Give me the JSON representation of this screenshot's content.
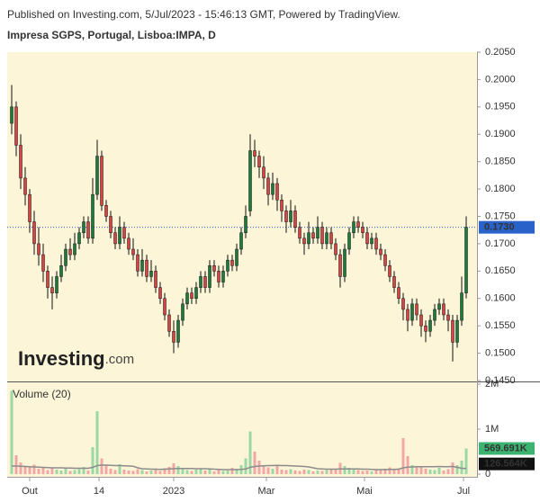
{
  "header": {
    "published": "Published on Investing.com, 5/Jul/2023 - 15:46:13 GMT, Powered by TradingView.",
    "symbol": "Impresa SGPS, Portugal, Lisboa:IMPA, D"
  },
  "chart_data": {
    "type": "candlestick",
    "watermark": "Investing",
    "watermark_suffix": ".com",
    "volume_title": "Volume (20)",
    "up_color": "#1e7a3c",
    "down_color": "#d64545",
    "volume_up_color": "#9ad8a6",
    "volume_down_color": "#f2a7a7",
    "volume_ma_color": "#8c8c8c",
    "last_price_color": "#2962c9",
    "xlim": [
      -1,
      103.4
    ],
    "xticks": [
      {
        "value": 4,
        "label": "Out"
      },
      {
        "value": 19.4,
        "label": "14"
      },
      {
        "value": 36,
        "label": "2023"
      },
      {
        "value": 56.6,
        "label": "Mar"
      },
      {
        "value": 78.4,
        "label": "Mai"
      },
      {
        "value": 100.4,
        "label": "Jul"
      }
    ],
    "ylim": [
      0.145,
      0.205
    ],
    "yticks": [
      {
        "value": 0.145,
        "label": "0.1450"
      },
      {
        "value": 0.15,
        "label": "0.1500"
      },
      {
        "value": 0.155,
        "label": "0.1550"
      },
      {
        "value": 0.16,
        "label": "0.1600"
      },
      {
        "value": 0.165,
        "label": "0.1650"
      },
      {
        "value": 0.17,
        "label": "0.1700"
      },
      {
        "value": 0.175,
        "label": "0.1750"
      },
      {
        "value": 0.18,
        "label": "0.1800"
      },
      {
        "value": 0.185,
        "label": "0.1850"
      },
      {
        "value": 0.19,
        "label": "0.1900"
      },
      {
        "value": 0.195,
        "label": "0.1950"
      },
      {
        "value": 0.2,
        "label": "0.2000"
      },
      {
        "value": 0.205,
        "label": "0.2050"
      }
    ],
    "vlim": [
      0,
      2040000
    ],
    "vticks": [
      0,
      {
        "value": 1000000,
        "label": "1M"
      },
      {
        "value": 2000000,
        "label": "2M"
      }
    ],
    "last_close": {
      "value": 0.173,
      "label": "0.1730"
    },
    "last_volume": {
      "value": 569691,
      "label": "569.691K"
    },
    "last_volume_ma": {
      "value": 126564,
      "label": "126.564K"
    },
    "ohlc": [
      [
        0.192,
        0.199,
        0.19,
        0.195
      ],
      [
        0.195,
        0.196,
        0.186,
        0.188
      ],
      [
        0.188,
        0.19,
        0.18,
        0.182
      ],
      [
        0.182,
        0.184,
        0.177,
        0.179
      ],
      [
        0.179,
        0.18,
        0.172,
        0.174
      ],
      [
        0.174,
        0.176,
        0.168,
        0.17
      ],
      [
        0.17,
        0.173,
        0.166,
        0.168
      ],
      [
        0.168,
        0.17,
        0.163,
        0.165
      ],
      [
        0.165,
        0.166,
        0.16,
        0.162
      ],
      [
        0.162,
        0.164,
        0.158,
        0.161
      ],
      [
        0.161,
        0.165,
        0.16,
        0.164
      ],
      [
        0.164,
        0.168,
        0.163,
        0.166
      ],
      [
        0.166,
        0.17,
        0.165,
        0.169
      ],
      [
        0.169,
        0.171,
        0.167,
        0.168
      ],
      [
        0.168,
        0.172,
        0.167,
        0.17
      ],
      [
        0.17,
        0.173,
        0.169,
        0.172
      ],
      [
        0.172,
        0.175,
        0.171,
        0.174
      ],
      [
        0.174,
        0.175,
        0.17,
        0.171
      ],
      [
        0.171,
        0.182,
        0.17,
        0.179
      ],
      [
        0.179,
        0.189,
        0.178,
        0.186
      ],
      [
        0.186,
        0.187,
        0.176,
        0.177
      ],
      [
        0.177,
        0.178,
        0.174,
        0.175
      ],
      [
        0.175,
        0.176,
        0.171,
        0.172
      ],
      [
        0.172,
        0.173,
        0.169,
        0.17
      ],
      [
        0.17,
        0.175,
        0.169,
        0.173
      ],
      [
        0.173,
        0.174,
        0.17,
        0.171
      ],
      [
        0.171,
        0.172,
        0.168,
        0.169
      ],
      [
        0.169,
        0.171,
        0.167,
        0.168
      ],
      [
        0.168,
        0.169,
        0.164,
        0.165
      ],
      [
        0.165,
        0.169,
        0.164,
        0.167
      ],
      [
        0.167,
        0.168,
        0.163,
        0.164
      ],
      [
        0.164,
        0.167,
        0.163,
        0.165
      ],
      [
        0.165,
        0.166,
        0.161,
        0.162
      ],
      [
        0.162,
        0.163,
        0.159,
        0.16
      ],
      [
        0.16,
        0.161,
        0.156,
        0.157
      ],
      [
        0.157,
        0.158,
        0.153,
        0.154
      ],
      [
        0.154,
        0.156,
        0.15,
        0.152
      ],
      [
        0.152,
        0.157,
        0.151,
        0.156
      ],
      [
        0.156,
        0.16,
        0.155,
        0.159
      ],
      [
        0.159,
        0.162,
        0.158,
        0.161
      ],
      [
        0.161,
        0.162,
        0.159,
        0.16
      ],
      [
        0.16,
        0.163,
        0.159,
        0.162
      ],
      [
        0.162,
        0.165,
        0.161,
        0.164
      ],
      [
        0.164,
        0.165,
        0.161,
        0.162
      ],
      [
        0.162,
        0.167,
        0.161,
        0.166
      ],
      [
        0.166,
        0.167,
        0.164,
        0.165
      ],
      [
        0.165,
        0.166,
        0.162,
        0.163
      ],
      [
        0.163,
        0.166,
        0.162,
        0.165
      ],
      [
        0.165,
        0.168,
        0.164,
        0.167
      ],
      [
        0.167,
        0.168,
        0.165,
        0.166
      ],
      [
        0.166,
        0.17,
        0.165,
        0.169
      ],
      [
        0.169,
        0.173,
        0.168,
        0.172
      ],
      [
        0.172,
        0.177,
        0.171,
        0.175
      ],
      [
        0.176,
        0.19,
        0.175,
        0.187
      ],
      [
        0.187,
        0.189,
        0.184,
        0.186
      ],
      [
        0.186,
        0.187,
        0.182,
        0.184
      ],
      [
        0.184,
        0.186,
        0.18,
        0.182
      ],
      [
        0.182,
        0.183,
        0.177,
        0.179
      ],
      [
        0.179,
        0.183,
        0.178,
        0.181
      ],
      [
        0.181,
        0.182,
        0.176,
        0.178
      ],
      [
        0.178,
        0.179,
        0.174,
        0.176
      ],
      [
        0.176,
        0.177,
        0.172,
        0.174
      ],
      [
        0.174,
        0.178,
        0.173,
        0.176
      ],
      [
        0.176,
        0.177,
        0.172,
        0.173
      ],
      [
        0.173,
        0.174,
        0.17,
        0.171
      ],
      [
        0.171,
        0.172,
        0.168,
        0.17
      ],
      [
        0.17,
        0.174,
        0.169,
        0.172
      ],
      [
        0.172,
        0.173,
        0.17,
        0.171
      ],
      [
        0.171,
        0.175,
        0.17,
        0.173
      ],
      [
        0.173,
        0.174,
        0.169,
        0.17
      ],
      [
        0.17,
        0.173,
        0.169,
        0.172
      ],
      [
        0.172,
        0.173,
        0.169,
        0.17
      ],
      [
        0.17,
        0.171,
        0.167,
        0.168
      ],
      [
        0.168,
        0.169,
        0.162,
        0.164
      ],
      [
        0.164,
        0.17,
        0.163,
        0.169
      ],
      [
        0.169,
        0.173,
        0.168,
        0.172
      ],
      [
        0.172,
        0.175,
        0.171,
        0.174
      ],
      [
        0.174,
        0.175,
        0.172,
        0.173
      ],
      [
        0.173,
        0.174,
        0.171,
        0.172
      ],
      [
        0.172,
        0.173,
        0.169,
        0.17
      ],
      [
        0.17,
        0.172,
        0.169,
        0.171
      ],
      [
        0.171,
        0.172,
        0.168,
        0.169
      ],
      [
        0.169,
        0.17,
        0.167,
        0.168
      ],
      [
        0.168,
        0.169,
        0.165,
        0.166
      ],
      [
        0.166,
        0.167,
        0.163,
        0.164
      ],
      [
        0.164,
        0.165,
        0.161,
        0.162
      ],
      [
        0.162,
        0.163,
        0.159,
        0.16
      ],
      [
        0.16,
        0.161,
        0.156,
        0.158
      ],
      [
        0.158,
        0.159,
        0.154,
        0.156
      ],
      [
        0.156,
        0.16,
        0.155,
        0.159
      ],
      [
        0.159,
        0.16,
        0.156,
        0.157
      ],
      [
        0.157,
        0.158,
        0.153,
        0.155
      ],
      [
        0.155,
        0.156,
        0.152,
        0.154
      ],
      [
        0.154,
        0.157,
        0.153,
        0.156
      ],
      [
        0.156,
        0.159,
        0.155,
        0.158
      ],
      [
        0.158,
        0.16,
        0.157,
        0.159
      ],
      [
        0.159,
        0.16,
        0.156,
        0.157
      ],
      [
        0.157,
        0.158,
        0.154,
        0.156
      ],
      [
        0.156,
        0.157,
        0.1485,
        0.152
      ],
      [
        0.152,
        0.157,
        0.151,
        0.156
      ],
      [
        0.156,
        0.164,
        0.155,
        0.161
      ],
      [
        0.161,
        0.175,
        0.16,
        0.173
      ]
    ],
    "volume": [
      1850000,
      420000,
      260000,
      180000,
      150000,
      210000,
      120000,
      160000,
      90000,
      140000,
      100000,
      80000,
      130000,
      70000,
      90000,
      110000,
      160000,
      80000,
      600000,
      1400000,
      350000,
      200000,
      120000,
      90000,
      220000,
      100000,
      80000,
      70000,
      110000,
      90000,
      60000,
      80000,
      100000,
      70000,
      130000,
      160000,
      240000,
      180000,
      120000,
      90000,
      70000,
      100000,
      130000,
      80000,
      110000,
      60000,
      90000,
      70000,
      80000,
      140000,
      120000,
      200000,
      350000,
      950000,
      500000,
      300000,
      200000,
      150000,
      120000,
      180000,
      100000,
      90000,
      110000,
      80000,
      70000,
      100000,
      90000,
      60000,
      80000,
      70000,
      90000,
      100000,
      120000,
      250000,
      180000,
      140000,
      110000,
      90000,
      70000,
      80000,
      60000,
      90000,
      100000,
      120000,
      150000,
      110000,
      130000,
      800000,
      400000,
      200000,
      150000,
      180000,
      120000,
      100000,
      90000,
      140000,
      80000,
      110000,
      260000,
      200000,
      300000,
      569691
    ],
    "volume_ma": [
      180000,
      180000,
      175000,
      170000,
      165000,
      160000,
      155000,
      150000,
      145000,
      140000,
      140000,
      140000,
      135000,
      135000,
      130000,
      130000,
      130000,
      130000,
      150000,
      190000,
      200000,
      200000,
      195000,
      190000,
      190000,
      185000,
      180000,
      175000,
      140000,
      120000,
      115000,
      110000,
      110000,
      105000,
      110000,
      115000,
      120000,
      125000,
      125000,
      125000,
      125000,
      120000,
      120000,
      120000,
      115000,
      110000,
      105000,
      100000,
      100000,
      100000,
      100000,
      105000,
      115000,
      150000,
      170000,
      180000,
      185000,
      190000,
      190000,
      195000,
      190000,
      190000,
      185000,
      180000,
      175000,
      170000,
      160000,
      140000,
      120000,
      115000,
      110000,
      110000,
      110000,
      115000,
      115000,
      115000,
      115000,
      115000,
      110000,
      110000,
      105000,
      100000,
      100000,
      100000,
      105000,
      105000,
      110000,
      140000,
      155000,
      160000,
      165000,
      165000,
      165000,
      165000,
      165000,
      170000,
      165000,
      165000,
      170000,
      150000,
      130000,
      126564
    ]
  }
}
